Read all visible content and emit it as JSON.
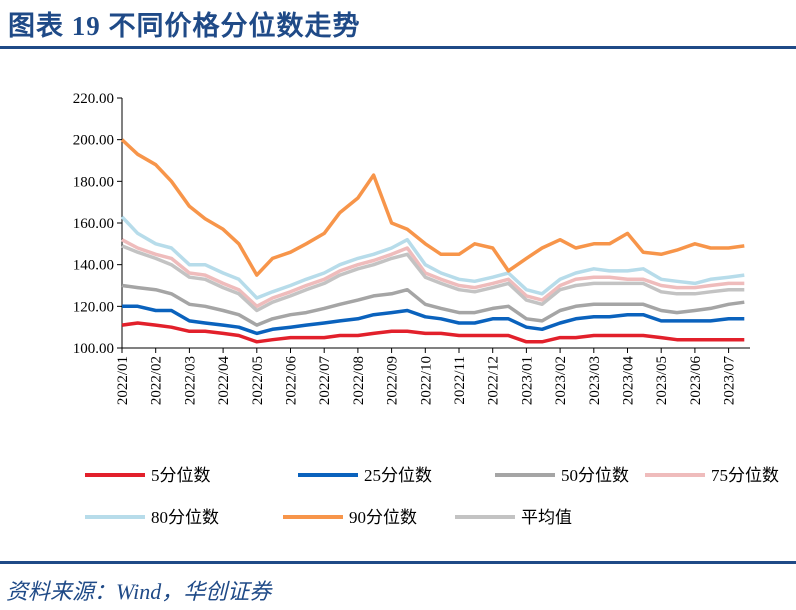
{
  "title": "图表 19  不同价格分位数走势",
  "source": "资料来源：Wind，华创证券",
  "chart_data": {
    "type": "line",
    "title": "",
    "xlabel": "",
    "ylabel": "",
    "ylim": [
      100,
      220
    ],
    "yticks": [
      "100.00",
      "120.00",
      "140.00",
      "160.00",
      "180.00",
      "200.00",
      "220.00"
    ],
    "xticks": [
      "2022/01",
      "2022/02",
      "2022/03",
      "2022/04",
      "2022/05",
      "2022/06",
      "2022/07",
      "2022/08",
      "2022/09",
      "2022/10",
      "2022/11",
      "2022/12",
      "2023/01",
      "2023/02",
      "2023/03",
      "2023/04",
      "2023/05",
      "2023/06",
      "2023/07"
    ],
    "grid": false,
    "legend_position": "bottom",
    "x": [
      "2022-01-01",
      "2022-01-15",
      "2022-02-01",
      "2022-02-15",
      "2022-03-01",
      "2022-03-15",
      "2022-04-01",
      "2022-04-15",
      "2022-05-01",
      "2022-05-15",
      "2022-06-01",
      "2022-06-15",
      "2022-07-01",
      "2022-07-15",
      "2022-08-01",
      "2022-08-15",
      "2022-09-01",
      "2022-09-15",
      "2022-10-01",
      "2022-10-15",
      "2022-11-01",
      "2022-11-15",
      "2022-12-01",
      "2022-12-15",
      "2023-01-01",
      "2023-01-15",
      "2023-02-01",
      "2023-02-15",
      "2023-03-01",
      "2023-03-15",
      "2023-04-01",
      "2023-04-15",
      "2023-05-01",
      "2023-05-15",
      "2023-06-01",
      "2023-06-15",
      "2023-07-01",
      "2023-07-15"
    ],
    "series": [
      {
        "name": "80分位数",
        "color": "#b7dcea",
        "values": [
          163,
          155,
          150,
          148,
          140,
          140,
          136,
          133,
          124,
          127,
          130,
          133,
          136,
          140,
          143,
          145,
          148,
          152,
          140,
          136,
          133,
          132,
          134,
          136,
          128,
          126,
          133,
          136,
          138,
          137,
          137,
          138,
          133,
          132,
          131,
          133,
          134,
          135
        ]
      },
      {
        "name": "75分位数",
        "color": "#efbcbc",
        "values": [
          152,
          148,
          145,
          143,
          136,
          135,
          131,
          128,
          120,
          124,
          127,
          130,
          133,
          137,
          140,
          142,
          145,
          148,
          136,
          133,
          130,
          129,
          131,
          133,
          125,
          123,
          130,
          133,
          134,
          134,
          133,
          133,
          130,
          129,
          129,
          130,
          131,
          131
        ]
      },
      {
        "name": "平均值",
        "color": "#c3c3c3",
        "values": [
          149,
          146,
          143,
          140,
          134,
          133,
          129,
          126,
          118,
          122,
          125,
          128,
          131,
          135,
          138,
          140,
          143,
          145,
          134,
          131,
          128,
          127,
          129,
          131,
          123,
          121,
          128,
          130,
          131,
          131,
          131,
          131,
          127,
          126,
          126,
          127,
          128,
          128
        ]
      },
      {
        "name": "50分位数",
        "color": "#a5a5a5",
        "values": [
          130,
          129,
          128,
          126,
          121,
          120,
          118,
          116,
          111,
          114,
          116,
          117,
          119,
          121,
          123,
          125,
          126,
          128,
          121,
          119,
          117,
          117,
          119,
          120,
          114,
          113,
          118,
          120,
          121,
          121,
          121,
          121,
          118,
          117,
          118,
          119,
          121,
          122
        ]
      },
      {
        "name": "25分位数",
        "color": "#0a62bd",
        "values": [
          120,
          120,
          118,
          118,
          113,
          112,
          111,
          110,
          107,
          109,
          110,
          111,
          112,
          113,
          114,
          116,
          117,
          118,
          115,
          114,
          112,
          112,
          114,
          114,
          110,
          109,
          112,
          114,
          115,
          115,
          116,
          116,
          113,
          113,
          113,
          113,
          114,
          114
        ]
      },
      {
        "name": "5分位数",
        "color": "#e2202b",
        "values": [
          111,
          112,
          111,
          110,
          108,
          108,
          107,
          106,
          103,
          104,
          105,
          105,
          105,
          106,
          106,
          107,
          108,
          108,
          107,
          107,
          106,
          106,
          106,
          106,
          103,
          103,
          105,
          105,
          106,
          106,
          106,
          106,
          105,
          104,
          104,
          104,
          104,
          104
        ]
      },
      {
        "name": "90分位数",
        "color": "#f7954a",
        "values": [
          200,
          193,
          188,
          180,
          168,
          162,
          157,
          150,
          135,
          143,
          146,
          150,
          155,
          165,
          172,
          183,
          160,
          157,
          150,
          145,
          145,
          150,
          148,
          137,
          143,
          148,
          152,
          148,
          150,
          150,
          155,
          146,
          145,
          147,
          150,
          148,
          148,
          149
        ]
      }
    ],
    "legend_order": [
      "5分位数",
      "25分位数",
      "50分位数",
      "75分位数",
      "80分位数",
      "90分位数",
      "平均值"
    ]
  }
}
